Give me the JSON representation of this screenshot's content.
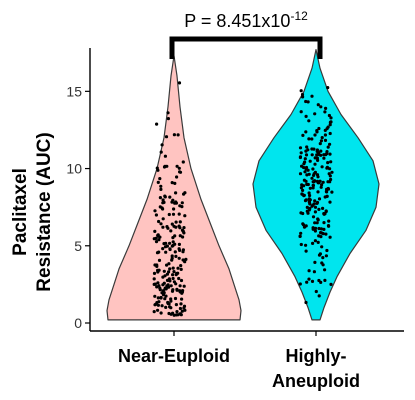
{
  "chart_data": {
    "type": "violin",
    "ylabel_lines": [
      "Paclitaxel",
      "Resistance (AUC)"
    ],
    "ylim": [
      0,
      18
    ],
    "yticks": [
      0,
      5,
      10,
      15
    ],
    "grid": false,
    "categories": [
      {
        "label_lines": [
          "Near-Euploid"
        ],
        "fill": "#ffc4c1",
        "min": 0.2,
        "max": 17.3
      },
      {
        "label_lines": [
          "Highly-",
          "Aneuploid"
        ],
        "fill": "#00e5ee",
        "min": 0.2,
        "max": 17.7
      }
    ],
    "annotation": {
      "base": "P = 8.451x10",
      "exponent": "-12"
    }
  }
}
